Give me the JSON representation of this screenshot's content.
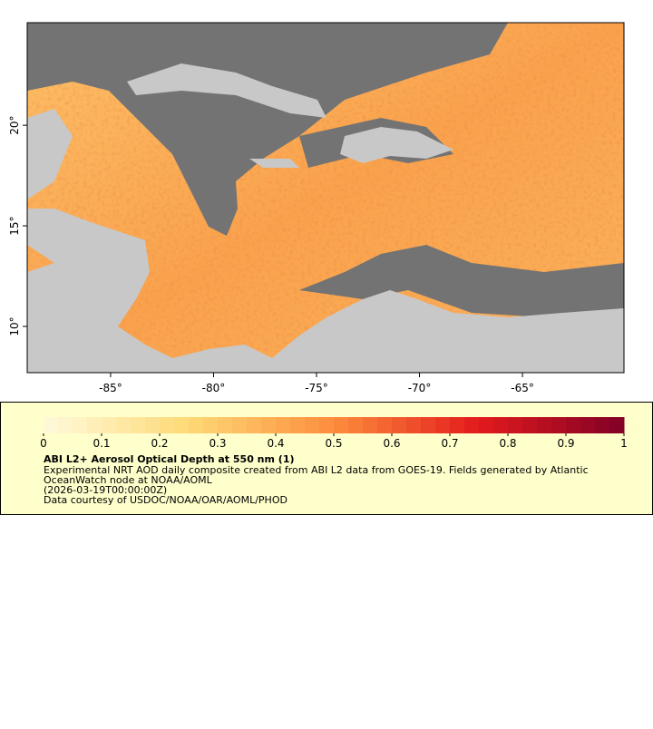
{
  "map": {
    "xlim": [
      -89.05,
      -60.07
    ],
    "ylim": [
      7.7,
      25.1
    ],
    "xticks": [
      {
        "value": -85,
        "label": "-85°"
      },
      {
        "value": -80,
        "label": "-80°"
      },
      {
        "value": -75,
        "label": "-75°"
      },
      {
        "value": -70,
        "label": "-70°"
      },
      {
        "value": -65,
        "label": "-65°"
      }
    ],
    "yticks": [
      {
        "value": 10,
        "label": "10°"
      },
      {
        "value": 15,
        "label": "15°"
      },
      {
        "value": 20,
        "label": "20°"
      }
    ]
  },
  "colorbar": {
    "range": [
      0,
      1
    ],
    "ticks": [
      0,
      0.1,
      0.2,
      0.3,
      0.4,
      0.5,
      0.6,
      0.7,
      0.8,
      0.9,
      1
    ],
    "colors": [
      "#fffadc",
      "#fed976",
      "#fd8d3c",
      "#e31a1c",
      "#800026"
    ]
  },
  "legend": {
    "title": "ABI L2+ Aerosol Optical Depth at 550 nm (1)",
    "lines": [
      "Experimental NRT AOD daily composite created from ABI L2 data from GOES-19. Fields generated by Atlantic",
      "OceanWatch node at NOAA/AOML",
      "(2026-03-19T00:00:00Z)",
      "Data courtesy of USDOC/NOAA/OAR/AOML/PHOD"
    ]
  }
}
